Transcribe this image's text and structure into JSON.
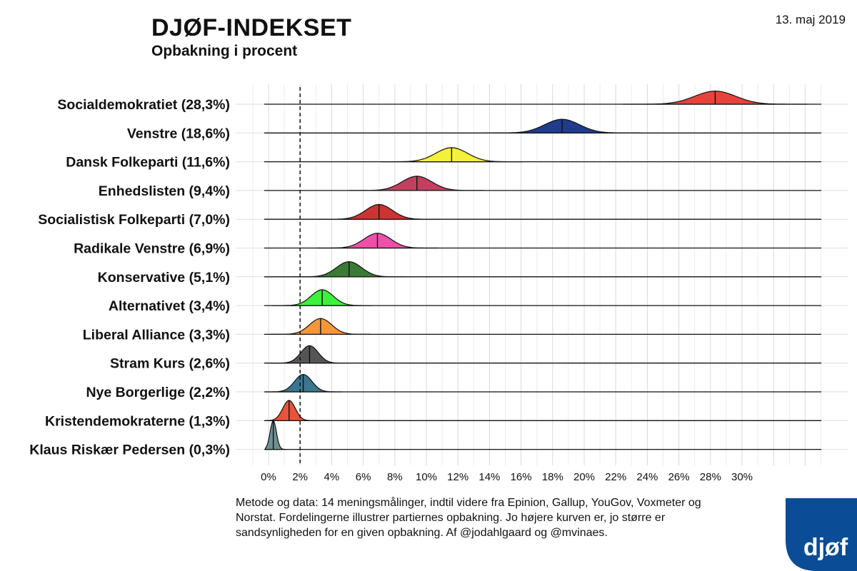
{
  "header": {
    "title": "DJØF-INDEKSET",
    "subtitle": "Opbakning i procent",
    "date": "13. maj 2019"
  },
  "footnote": "Metode og data: 14 meningsmålinger, indtil videre fra Epinion, Gallup, YouGov, Voxmeter og Norstat. Fordelingerne illustrer partiernes opbakning. Jo højere kurven er, jo større er sandsynligheden for en given opbakning. Af @jodahlgaard og @mvinaes.",
  "logo": {
    "text": "djøf",
    "color": "#0a4c96"
  },
  "chart_data": {
    "type": "ridgeline",
    "xlabel": "",
    "ylabel": "",
    "x_ticks": [
      "0%",
      "2%",
      "4%",
      "6%",
      "8%",
      "10%",
      "12%",
      "14%",
      "16%",
      "18%",
      "20%",
      "22%",
      "24%",
      "26%",
      "28%",
      "30%"
    ],
    "threshold": 2,
    "grid": true,
    "series": [
      {
        "label": "Socialdemokratiet (28,3%)",
        "value": 28.3,
        "color": "#e8423a",
        "sd": 1.3
      },
      {
        "label": "Venstre (18,6%)",
        "value": 18.6,
        "color": "#1f3d8c",
        "sd": 1.1
      },
      {
        "label": "Dansk Folkeparti (11,6%)",
        "value": 11.6,
        "color": "#f5f03c",
        "sd": 1.0
      },
      {
        "label": "Enhedslisten (9,4%)",
        "value": 9.4,
        "color": "#c04060",
        "sd": 0.95
      },
      {
        "label": "Socialistisk Folkeparti (7,0%)",
        "value": 7.0,
        "color": "#cc3333",
        "sd": 0.85
      },
      {
        "label": "Radikale Venstre (6,9%)",
        "value": 6.9,
        "color": "#ee4fa8",
        "sd": 0.85
      },
      {
        "label": "Konservative (5,1%)",
        "value": 5.1,
        "color": "#3a7a35",
        "sd": 0.8
      },
      {
        "label": "Alternativet (3,4%)",
        "value": 3.4,
        "color": "#3cf23c",
        "sd": 0.7
      },
      {
        "label": "Liberal Alliance (3,3%)",
        "value": 3.3,
        "color": "#f7963a",
        "sd": 0.7
      },
      {
        "label": "Stram Kurs (2,6%)",
        "value": 2.6,
        "color": "#555555",
        "sd": 0.55
      },
      {
        "label": "Nye Borgerlige (2,2%)",
        "value": 2.2,
        "color": "#3a7690",
        "sd": 0.55
      },
      {
        "label": "Kristendemokraterne (1,3%)",
        "value": 1.3,
        "color": "#e8533a",
        "sd": 0.4
      },
      {
        "label": "Klaus Riskær Pedersen (0,3%)",
        "value": 0.3,
        "color": "#6f9090",
        "sd": 0.2
      }
    ]
  }
}
